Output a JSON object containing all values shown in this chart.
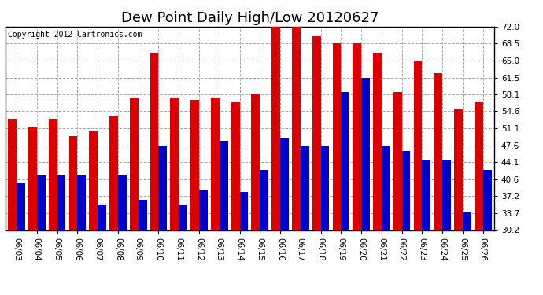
{
  "title": "Dew Point Daily High/Low 20120627",
  "copyright": "Copyright 2012 Cartronics.com",
  "categories": [
    "06/03",
    "06/04",
    "06/05",
    "06/06",
    "06/07",
    "06/08",
    "06/09",
    "06/10",
    "06/11",
    "06/12",
    "06/13",
    "06/14",
    "06/15",
    "06/16",
    "06/17",
    "06/18",
    "06/19",
    "06/20",
    "06/21",
    "06/22",
    "06/23",
    "06/24",
    "06/25",
    "06/26"
  ],
  "highs": [
    53.0,
    51.5,
    53.0,
    49.5,
    50.5,
    53.5,
    57.5,
    66.5,
    57.5,
    57.0,
    57.5,
    56.5,
    58.0,
    72.0,
    72.0,
    70.0,
    68.5,
    68.5,
    66.5,
    58.5,
    65.0,
    62.5,
    55.0,
    56.5
  ],
  "lows": [
    40.0,
    41.5,
    41.5,
    41.5,
    35.5,
    41.5,
    36.5,
    47.5,
    35.5,
    38.5,
    48.5,
    38.0,
    42.5,
    49.0,
    47.5,
    47.5,
    58.5,
    61.5,
    47.5,
    46.5,
    44.5,
    44.5,
    34.0,
    42.5
  ],
  "high_color": "#dd0000",
  "low_color": "#0000cc",
  "bg_color": "#ffffff",
  "plot_bg_color": "#ffffff",
  "grid_color": "#aaaaaa",
  "yticks": [
    30.2,
    33.7,
    37.2,
    40.6,
    44.1,
    47.6,
    51.1,
    54.6,
    58.1,
    61.5,
    65.0,
    68.5,
    72.0
  ],
  "ymin": 30.2,
  "ymax": 72.0,
  "title_fontsize": 13,
  "copyright_fontsize": 7,
  "bar_width": 0.42,
  "tick_fontsize": 7.5
}
